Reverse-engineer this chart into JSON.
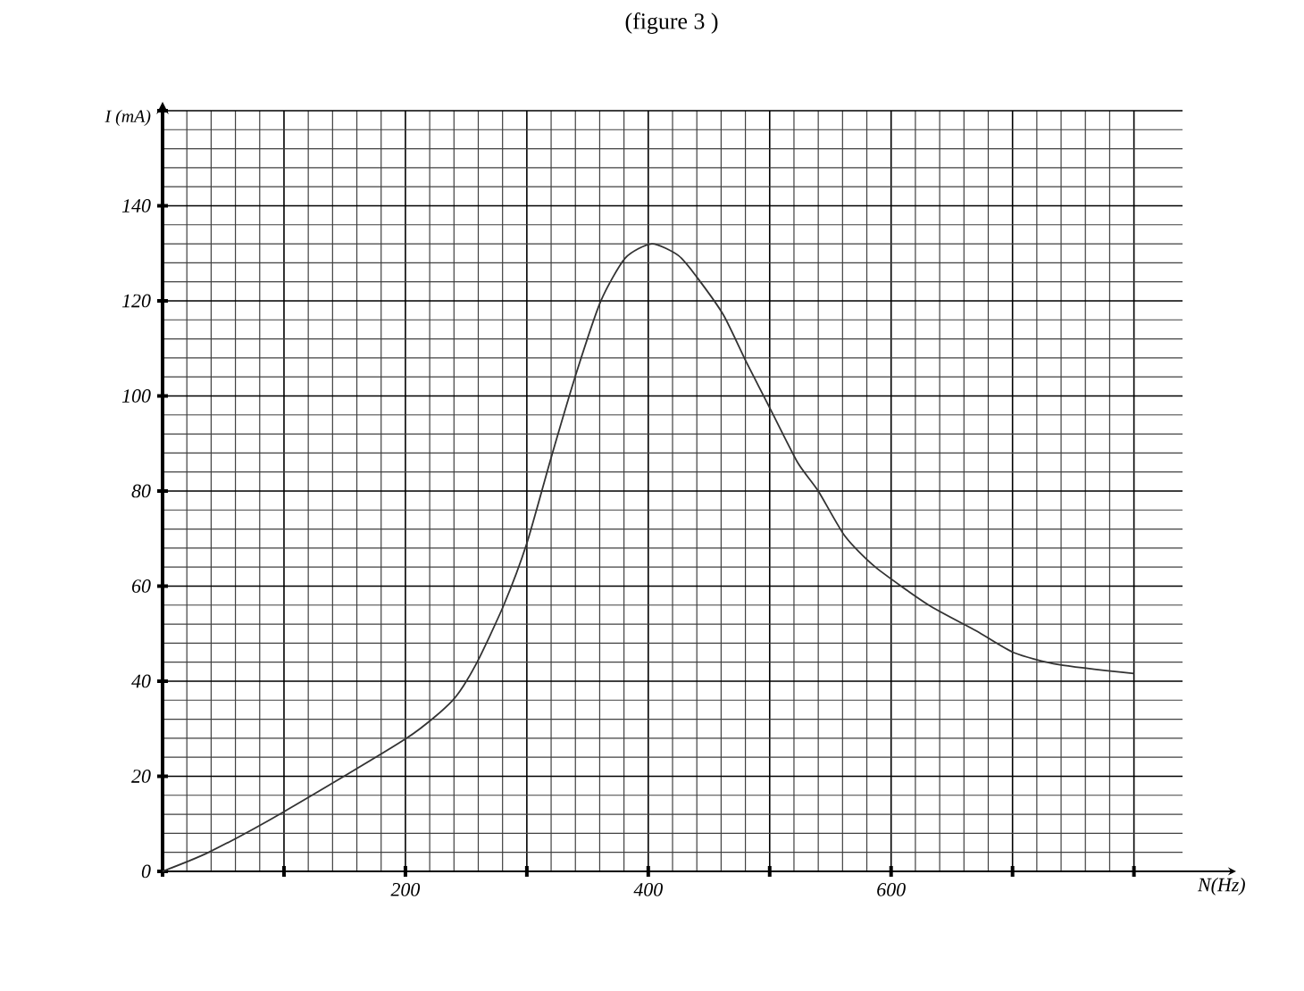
{
  "chart_data": {
    "type": "line",
    "title": "(figure 3 )",
    "xlabel": "N(Hz)",
    "ylabel": "I (mA)",
    "x": [
      0,
      38,
      99,
      201,
      239,
      258,
      281,
      300,
      320,
      341,
      361,
      381,
      403,
      425,
      440,
      462,
      481,
      501,
      523,
      540,
      562,
      587,
      631,
      670,
      701,
      738,
      800
    ],
    "series": [
      {
        "color": "#333333",
        "values": [
          0,
          4,
          12.4,
          28,
          36,
          43.5,
          56,
          69,
          87,
          105,
          120,
          129,
          132,
          129.5,
          125,
          117,
          107,
          97,
          86,
          80,
          70.5,
          64,
          56,
          50.6,
          46,
          43.5,
          41.6
        ]
      }
    ],
    "xlim": [
      0,
      840
    ],
    "ylim": [
      0,
      160
    ],
    "xticks": [
      {
        "value": 0,
        "label": null
      },
      {
        "value": 100,
        "label": null
      },
      200,
      {
        "value": 300,
        "label": null
      },
      400,
      {
        "value": 500,
        "label": null
      },
      600,
      {
        "value": 700,
        "label": null
      },
      {
        "value": 800,
        "label": null
      }
    ],
    "yticks": [
      0,
      20,
      40,
      60,
      80,
      100,
      120,
      140,
      {
        "value": 160,
        "label": null
      }
    ],
    "grid": true,
    "marker": "none",
    "line_style": "solid"
  }
}
